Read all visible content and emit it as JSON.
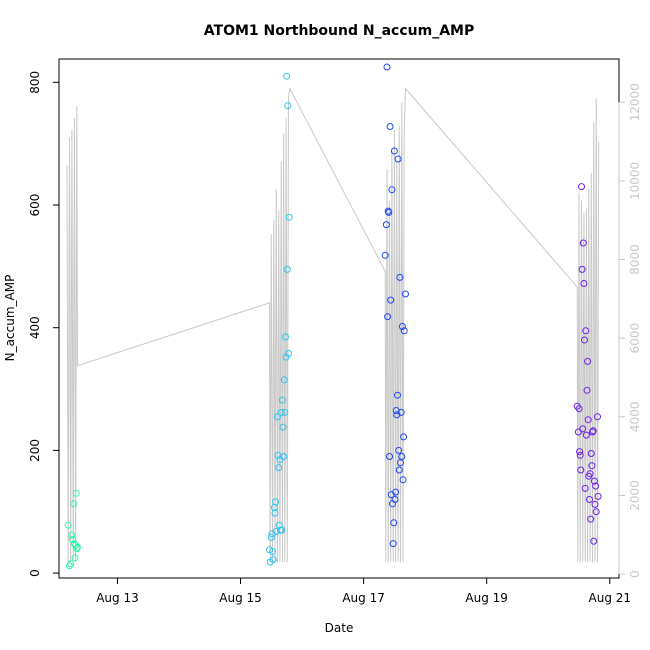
{
  "chart_data": {
    "type": "scatter",
    "title": "ATOM1 Northbound N_accum_AMP",
    "xlabel": "Date",
    "ylabel": "N_accum_AMP",
    "xlim": [
      12.05,
      21.15
    ],
    "ylim": [
      -8,
      838
    ],
    "y2lim": [
      -100,
      13100
    ],
    "x_ticks": [
      {
        "value": 13,
        "label": "Aug 13"
      },
      {
        "value": 15,
        "label": "Aug 15"
      },
      {
        "value": 17,
        "label": "Aug 17"
      },
      {
        "value": 19,
        "label": "Aug 19"
      },
      {
        "value": 21,
        "label": "Aug 21"
      }
    ],
    "y_ticks": [
      0,
      200,
      400,
      600,
      800
    ],
    "y2_ticks": [
      0,
      2000,
      4000,
      6000,
      8000,
      10000,
      12000
    ],
    "colors": {
      "cluster1": "#2ff5a8",
      "cluster2": "#30c4f0",
      "cluster3": "#2048f2",
      "cluster4": "#7020e8",
      "secondary_line": "#c8c8c8"
    },
    "points": [
      {
        "cluster": 1,
        "data": [
          [
            12.2,
            78
          ],
          [
            12.22,
            12
          ],
          [
            12.24,
            15
          ],
          [
            12.26,
            62
          ],
          [
            12.27,
            55
          ],
          [
            12.29,
            113
          ],
          [
            12.3,
            48
          ],
          [
            12.31,
            25
          ],
          [
            12.32,
            45
          ],
          [
            12.33,
            130
          ],
          [
            12.34,
            40
          ],
          [
            12.35,
            42
          ]
        ]
      },
      {
        "cluster": 2,
        "data": [
          [
            15.47,
            38
          ],
          [
            15.48,
            18
          ],
          [
            15.5,
            58
          ],
          [
            15.51,
            64
          ],
          [
            15.52,
            35
          ],
          [
            15.53,
            22
          ],
          [
            15.55,
            107
          ],
          [
            15.56,
            98
          ],
          [
            15.57,
            116
          ],
          [
            15.58,
            68
          ],
          [
            15.6,
            255
          ],
          [
            15.61,
            192
          ],
          [
            15.62,
            172
          ],
          [
            15.63,
            78
          ],
          [
            15.64,
            185
          ],
          [
            15.65,
            70
          ],
          [
            15.66,
            262
          ],
          [
            15.67,
            70
          ],
          [
            15.68,
            282
          ],
          [
            15.69,
            238
          ],
          [
            15.7,
            190
          ],
          [
            15.71,
            315
          ],
          [
            15.72,
            262
          ],
          [
            15.73,
            385
          ],
          [
            15.74,
            352
          ],
          [
            15.75,
            810
          ],
          [
            15.76,
            495
          ],
          [
            15.77,
            762
          ],
          [
            15.78,
            358
          ],
          [
            15.79,
            580
          ]
        ]
      },
      {
        "cluster": 3,
        "data": [
          [
            17.35,
            518
          ],
          [
            17.37,
            568
          ],
          [
            17.38,
            825
          ],
          [
            17.39,
            418
          ],
          [
            17.4,
            590
          ],
          [
            17.41,
            588
          ],
          [
            17.42,
            190
          ],
          [
            17.43,
            728
          ],
          [
            17.44,
            445
          ],
          [
            17.45,
            128
          ],
          [
            17.46,
            625
          ],
          [
            17.47,
            113
          ],
          [
            17.48,
            48
          ],
          [
            17.49,
            82
          ],
          [
            17.5,
            688
          ],
          [
            17.51,
            120
          ],
          [
            17.52,
            132
          ],
          [
            17.53,
            265
          ],
          [
            17.54,
            258
          ],
          [
            17.55,
            290
          ],
          [
            17.56,
            675
          ],
          [
            17.57,
            200
          ],
          [
            17.58,
            168
          ],
          [
            17.59,
            482
          ],
          [
            17.6,
            180
          ],
          [
            17.61,
            262
          ],
          [
            17.62,
            190
          ],
          [
            17.63,
            402
          ],
          [
            17.64,
            152
          ],
          [
            17.65,
            222
          ],
          [
            17.66,
            395
          ],
          [
            17.68,
            455
          ]
        ]
      },
      {
        "cluster": 4,
        "data": [
          [
            20.47,
            272
          ],
          [
            20.49,
            230
          ],
          [
            20.5,
            268
          ],
          [
            20.51,
            198
          ],
          [
            20.52,
            192
          ],
          [
            20.53,
            168
          ],
          [
            20.54,
            630
          ],
          [
            20.55,
            495
          ],
          [
            20.56,
            235
          ],
          [
            20.57,
            538
          ],
          [
            20.58,
            472
          ],
          [
            20.59,
            380
          ],
          [
            20.6,
            138
          ],
          [
            20.61,
            395
          ],
          [
            20.62,
            225
          ],
          [
            20.63,
            298
          ],
          [
            20.64,
            345
          ],
          [
            20.65,
            250
          ],
          [
            20.66,
            158
          ],
          [
            20.67,
            120
          ],
          [
            20.68,
            162
          ],
          [
            20.69,
            88
          ],
          [
            20.7,
            195
          ],
          [
            20.71,
            175
          ],
          [
            20.72,
            230
          ],
          [
            20.73,
            232
          ],
          [
            20.74,
            52
          ],
          [
            20.75,
            150
          ],
          [
            20.76,
            112
          ],
          [
            20.77,
            142
          ],
          [
            20.78,
            100
          ],
          [
            20.8,
            255
          ],
          [
            20.81,
            125
          ]
        ]
      }
    ],
    "secondary_line": [
      [
        12.18,
        10400
      ],
      [
        12.2,
        300
      ],
      [
        12.22,
        11100
      ],
      [
        12.24,
        300
      ],
      [
        12.26,
        11300
      ],
      [
        12.28,
        300
      ],
      [
        12.3,
        11600
      ],
      [
        12.32,
        300
      ],
      [
        12.34,
        11900
      ],
      [
        12.35,
        5300
      ],
      [
        15.47,
        6900
      ],
      [
        15.48,
        300
      ],
      [
        15.5,
        8650
      ],
      [
        15.52,
        300
      ],
      [
        15.54,
        9000
      ],
      [
        15.56,
        300
      ],
      [
        15.58,
        9800
      ],
      [
        15.6,
        300
      ],
      [
        15.62,
        9250
      ],
      [
        15.64,
        300
      ],
      [
        15.66,
        10500
      ],
      [
        15.68,
        300
      ],
      [
        15.7,
        11200
      ],
      [
        15.72,
        300
      ],
      [
        15.74,
        11600
      ],
      [
        15.76,
        300
      ],
      [
        15.78,
        12150
      ],
      [
        15.8,
        12350
      ],
      [
        17.35,
        7700
      ],
      [
        17.36,
        300
      ],
      [
        17.38,
        10300
      ],
      [
        17.4,
        300
      ],
      [
        17.42,
        9500
      ],
      [
        17.44,
        300
      ],
      [
        17.46,
        10800
      ],
      [
        17.48,
        300
      ],
      [
        17.5,
        11300
      ],
      [
        17.52,
        300
      ],
      [
        17.54,
        10500
      ],
      [
        17.56,
        300
      ],
      [
        17.58,
        11400
      ],
      [
        17.6,
        300
      ],
      [
        17.62,
        12000
      ],
      [
        17.64,
        300
      ],
      [
        17.66,
        11200
      ],
      [
        17.68,
        12350
      ],
      [
        20.47,
        7300
      ],
      [
        20.48,
        300
      ],
      [
        20.5,
        9700
      ],
      [
        20.52,
        300
      ],
      [
        20.54,
        9500
      ],
      [
        20.56,
        300
      ],
      [
        20.58,
        9200
      ],
      [
        20.6,
        300
      ],
      [
        20.62,
        9300
      ],
      [
        20.64,
        300
      ],
      [
        20.66,
        9800
      ],
      [
        20.68,
        300
      ],
      [
        20.7,
        10200
      ],
      [
        20.72,
        300
      ],
      [
        20.74,
        11500
      ],
      [
        20.76,
        300
      ],
      [
        20.78,
        12100
      ],
      [
        20.8,
        300
      ],
      [
        20.82,
        11000
      ]
    ]
  }
}
